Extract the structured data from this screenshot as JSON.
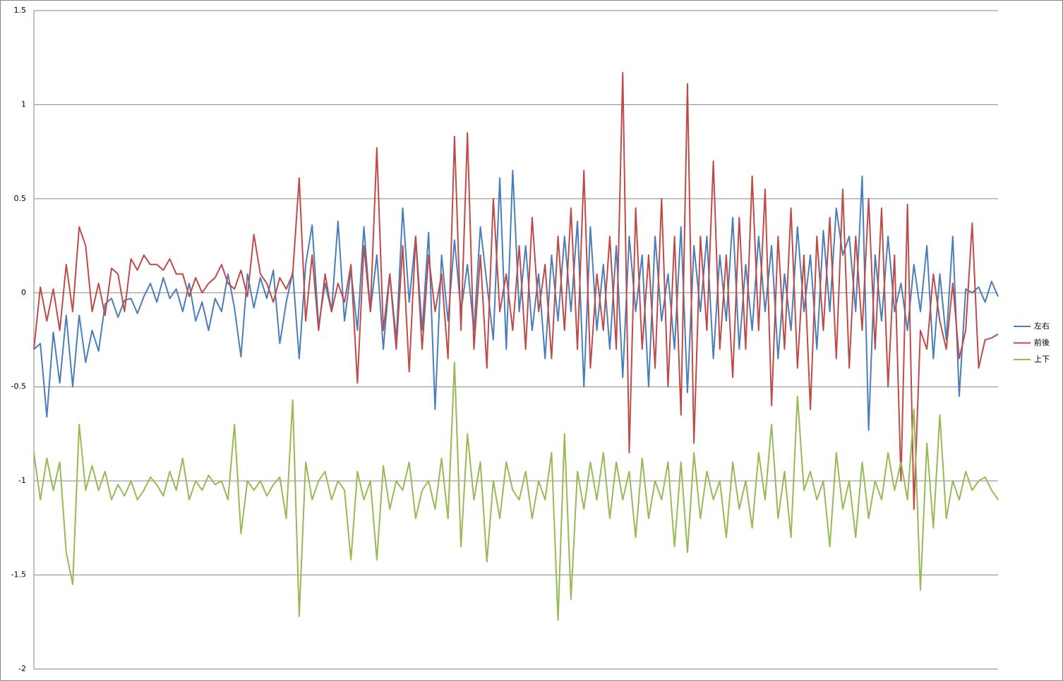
{
  "chart_data": {
    "type": "line",
    "ylim": [
      -2,
      1.5
    ],
    "yticks": [
      -2,
      -1.5,
      -1,
      -0.5,
      0,
      0.5,
      1,
      1.5
    ],
    "grid": true,
    "legend": "right",
    "series": [
      {
        "name": "左右",
        "color": "#4a7ebb",
        "values": [
          -0.3,
          -0.27,
          -0.66,
          -0.21,
          -0.48,
          -0.12,
          -0.5,
          -0.12,
          -0.37,
          -0.2,
          -0.31,
          -0.06,
          -0.03,
          -0.13,
          -0.04,
          -0.03,
          -0.11,
          -0.02,
          0.05,
          -0.05,
          0.08,
          -0.03,
          0.02,
          -0.1,
          0.05,
          -0.15,
          -0.05,
          -0.2,
          -0.03,
          -0.1,
          0.1,
          -0.08,
          -0.34,
          0.1,
          -0.08,
          0.08,
          -0.03,
          0.12,
          -0.27,
          -0.05,
          0.11,
          -0.35,
          0.15,
          0.36,
          -0.18,
          0.05,
          -0.1,
          0.38,
          -0.15,
          0.12,
          -0.2,
          0.35,
          -0.1,
          0.2,
          -0.3,
          0.1,
          -0.25,
          0.45,
          -0.05,
          0.3,
          -0.2,
          0.32,
          -0.62,
          0.2,
          -0.15,
          0.28,
          -0.1,
          0.15,
          -0.2,
          0.35,
          0.05,
          -0.25,
          0.61,
          -0.3,
          0.65,
          -0.1,
          0.25,
          -0.2,
          0.1,
          -0.35,
          0.2,
          -0.15,
          0.3,
          -0.1,
          0.38,
          -0.5,
          0.35,
          -0.2,
          0.15,
          -0.3,
          0.25,
          -0.45,
          0.3,
          -0.1,
          0.2,
          -0.5,
          0.3,
          -0.15,
          0.1,
          -0.3,
          0.35,
          -0.53,
          0.25,
          -0.1,
          0.3,
          -0.35,
          0.2,
          -0.15,
          0.4,
          -0.3,
          0.15,
          -0.2,
          0.3,
          -0.1,
          0.25,
          -0.35,
          0.1,
          -0.2,
          0.35,
          -0.1,
          0.2,
          -0.3,
          0.33,
          -0.1,
          0.45,
          0.2,
          0.3,
          -0.1,
          0.62,
          -0.73,
          0.2,
          -0.15,
          0.3,
          -0.1,
          0.05,
          -0.2,
          0.15,
          -0.1,
          0.25,
          -0.35,
          0.1,
          -0.25,
          0.3,
          -0.55,
          0.02,
          0.0,
          0.03,
          -0.05,
          0.06,
          -0.02
        ]
      },
      {
        "name": "前後",
        "color": "#be4b48",
        "values": [
          -0.3,
          0.03,
          -0.15,
          0.02,
          -0.2,
          0.15,
          -0.1,
          0.35,
          0.25,
          -0.1,
          0.05,
          -0.12,
          0.13,
          0.1,
          -0.1,
          0.18,
          0.12,
          0.2,
          0.15,
          0.15,
          0.12,
          0.18,
          0.1,
          0.1,
          -0.02,
          0.08,
          0.0,
          0.05,
          0.08,
          0.15,
          0.05,
          0.02,
          0.12,
          -0.02,
          0.31,
          0.1,
          0.05,
          -0.05,
          0.08,
          0.02,
          0.1,
          0.61,
          -0.15,
          0.2,
          -0.2,
          0.1,
          -0.1,
          0.05,
          -0.05,
          0.15,
          -0.48,
          0.25,
          -0.1,
          0.77,
          -0.2,
          0.1,
          -0.3,
          0.25,
          -0.42,
          0.3,
          -0.3,
          0.2,
          -0.1,
          0.1,
          -0.35,
          0.83,
          -0.2,
          0.85,
          -0.3,
          0.2,
          -0.4,
          0.5,
          -0.1,
          0.1,
          -0.2,
          0.25,
          -0.3,
          0.4,
          -0.1,
          0.15,
          -0.35,
          0.3,
          -0.2,
          0.45,
          -0.3,
          0.65,
          -0.4,
          0.1,
          -0.2,
          0.3,
          -0.3,
          1.17,
          -0.85,
          0.45,
          -0.3,
          0.2,
          -0.4,
          0.5,
          -0.5,
          0.3,
          -0.65,
          1.11,
          -0.8,
          0.3,
          -0.2,
          0.7,
          -0.3,
          0.2,
          -0.45,
          0.4,
          -0.3,
          0.62,
          -0.2,
          0.55,
          -0.6,
          0.3,
          -0.3,
          0.45,
          -0.4,
          0.2,
          -0.62,
          0.3,
          -0.2,
          0.4,
          -0.35,
          0.55,
          -0.4,
          0.3,
          -0.2,
          0.5,
          -0.3,
          0.45,
          -0.5,
          0.2,
          -1.0,
          0.47,
          -1.15,
          -0.2,
          -0.3,
          0.1,
          -0.15,
          -0.3,
          0.05,
          -0.35,
          -0.2,
          0.37,
          -0.4,
          -0.25,
          -0.24,
          -0.22
        ]
      },
      {
        "name": "上下",
        "color": "#98b954",
        "values": [
          -0.85,
          -1.1,
          -0.88,
          -1.05,
          -0.9,
          -1.38,
          -1.55,
          -0.7,
          -1.05,
          -0.92,
          -1.05,
          -0.95,
          -1.1,
          -1.02,
          -1.08,
          -1.0,
          -1.1,
          -1.05,
          -0.98,
          -1.02,
          -1.08,
          -0.95,
          -1.05,
          -0.88,
          -1.1,
          -1.0,
          -1.05,
          -0.97,
          -1.02,
          -1.0,
          -1.1,
          -0.7,
          -1.28,
          -1.0,
          -1.05,
          -1.0,
          -1.08,
          -1.02,
          -0.98,
          -1.2,
          -0.57,
          -1.72,
          -0.9,
          -1.1,
          -1.0,
          -0.95,
          -1.1,
          -1.0,
          -1.05,
          -1.42,
          -0.95,
          -1.1,
          -1.0,
          -1.42,
          -0.92,
          -1.15,
          -1.0,
          -1.05,
          -0.9,
          -1.2,
          -1.05,
          -1.0,
          -1.15,
          -0.88,
          -1.2,
          -0.37,
          -1.35,
          -0.75,
          -1.1,
          -0.9,
          -1.43,
          -1.0,
          -1.2,
          -0.9,
          -1.05,
          -1.1,
          -0.95,
          -1.2,
          -1.0,
          -1.1,
          -0.85,
          -1.74,
          -0.75,
          -1.63,
          -0.95,
          -1.15,
          -0.9,
          -1.1,
          -0.85,
          -1.2,
          -0.9,
          -1.1,
          -0.95,
          -1.3,
          -0.88,
          -1.2,
          -1.0,
          -1.1,
          -0.9,
          -1.35,
          -0.9,
          -1.38,
          -0.85,
          -1.2,
          -0.95,
          -1.1,
          -1.0,
          -1.3,
          -0.9,
          -1.15,
          -1.0,
          -1.25,
          -0.85,
          -1.1,
          -0.7,
          -1.2,
          -0.95,
          -1.3,
          -0.55,
          -1.05,
          -0.95,
          -1.1,
          -1.0,
          -1.35,
          -0.85,
          -1.15,
          -1.0,
          -1.3,
          -0.9,
          -1.2,
          -1.0,
          -1.1,
          -0.85,
          -1.05,
          -0.9,
          -1.1,
          -0.62,
          -1.58,
          -0.8,
          -1.25,
          -0.65,
          -1.2,
          -1.0,
          -1.1,
          -0.95,
          -1.05,
          -1.0,
          -0.98,
          -1.05,
          -1.1
        ]
      }
    ]
  }
}
